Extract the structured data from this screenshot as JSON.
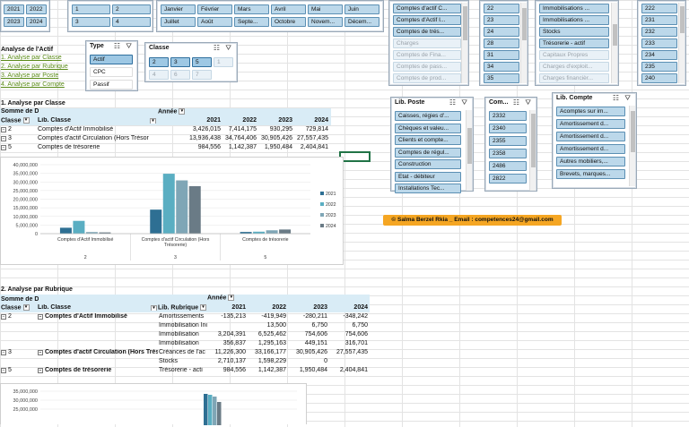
{
  "slicers": {
    "years": [
      "2021",
      "2022",
      "2023",
      "2024"
    ],
    "classes_top": [
      "1",
      "2",
      "3",
      "4"
    ],
    "months": [
      "Janvier",
      "Février",
      "Mars",
      "Avril",
      "Mai",
      "Juin",
      "Juillet",
      "Août",
      "Septe...",
      "Octobre",
      "Novem...",
      "Décem..."
    ],
    "comptes_list": [
      "Comptes d'actif C...",
      "Comptes d'Actif I...",
      "Comptes de trés...",
      "Charges",
      "Comptes de Fina...",
      "Comptes de pass...",
      "Comptes de prod..."
    ],
    "nums_a": [
      "22",
      "23",
      "24",
      "28",
      "31",
      "34",
      "35"
    ],
    "rubriques": [
      "Immobilisations ...",
      "Immobilisations ...",
      "Stocks",
      "Trésorerie - actif",
      "Capitaux Propres",
      "Charges d'exploit...",
      "Charges financièr..."
    ],
    "nums_b": [
      "222",
      "231",
      "232",
      "233",
      "234",
      "235",
      "240"
    ],
    "type": {
      "title": "Type",
      "items": [
        "Actif",
        "CPC",
        "Passif"
      ]
    },
    "classe": {
      "title": "Classe",
      "items": [
        "2",
        "3",
        "5",
        "1",
        "4",
        "6",
        "7"
      ]
    },
    "lib_poste": {
      "title": "Lib. Poste",
      "items": [
        "Caisses, régies d'...",
        "Chèques et valeu...",
        "Clients et compte...",
        "Comptes de régul...",
        "Construction",
        "Etat - débiteur",
        "Installations Tec..."
      ]
    },
    "compte": {
      "title": "Com...",
      "items": [
        "2332",
        "2340",
        "2355",
        "2358",
        "2486",
        "2822"
      ]
    },
    "lib_compte": {
      "title": "Lib. Compte",
      "items": [
        "Acomptes sur im...",
        "Amortissement d...",
        "Amortissement d...",
        "Amortissement d...",
        "Autres mobiliers,...",
        "Brevets, marques..."
      ]
    }
  },
  "nav": {
    "title": "Analyse de l'Actif",
    "links": [
      "1. Analyse par Classe",
      "2. Analyse par Rubrique",
      "3. Analyse par Poste",
      "4. Analyse par Compte"
    ]
  },
  "pivot1": {
    "title": "1. Analyse par Classe",
    "somme": "Somme de D",
    "annee": "Année",
    "col_classe": "Classe",
    "col_lib": "Lib. Classe",
    "years": [
      "2021",
      "2022",
      "2023",
      "2024"
    ],
    "rows": [
      {
        "code": "2",
        "lib": "Comptes d'Actif Immobilisé",
        "v": [
          "3,426,015",
          "7,414,175",
          "930,295",
          "729,814"
        ]
      },
      {
        "code": "3",
        "lib": "Comptes d'actif Circulation (Hors Trésor",
        "v": [
          "13,936,438",
          "34,764,406",
          "30,905,426",
          "27,557,435"
        ]
      },
      {
        "code": "5",
        "lib": "Comptes de trésorerie",
        "v": [
          "984,556",
          "1,142,387",
          "1,950,484",
          "2,404,841"
        ]
      }
    ]
  },
  "chart_data": [
    {
      "type": "bar",
      "categories": [
        "Comptes d'Actif Immobilisé",
        "Comptes d'actif Circulation (Hors Trésorerie)",
        "Comptes de trésorerie"
      ],
      "group_labels": [
        "2",
        "3",
        "5"
      ],
      "series": [
        {
          "name": "2021",
          "values": [
            3426015,
            13936438,
            984556
          ],
          "color": "#2e6f93"
        },
        {
          "name": "2022",
          "values": [
            7414175,
            34764406,
            1142387
          ],
          "color": "#5aaec2"
        },
        {
          "name": "2023",
          "values": [
            930295,
            30905426,
            1950484
          ],
          "color": "#7fa6b6"
        },
        {
          "name": "2024",
          "values": [
            729814,
            27557435,
            2404841
          ],
          "color": "#6a7b86"
        }
      ],
      "ylim": [
        0,
        40000000
      ],
      "yticks": [
        "40,000,000",
        "35,000,000",
        "30,000,000",
        "25,000,000",
        "20,000,000",
        "15,000,000",
        "10,000,000",
        "5,000,000",
        "0"
      ],
      "legend": "right",
      "grid": true
    },
    {
      "type": "bar",
      "partial": true,
      "yticks": [
        "35,000,000",
        "30,000,000",
        "25,000,000"
      ]
    }
  ],
  "pivot2": {
    "title": "2. Analyse par Rubrique",
    "somme": "Somme de D",
    "annee": "Année",
    "col_classe": "Classe",
    "col_lib": "Lib. Classe",
    "col_rub": "Lib. Rubrique",
    "years": [
      "2021",
      "2022",
      "2023",
      "2024"
    ],
    "rows": [
      {
        "code": "2",
        "lib": "Comptes d'Actif Immobilisé",
        "rub": "Amortissements",
        "v": [
          "-135,213",
          "-419,949",
          "-280,211",
          "-348,242"
        ]
      },
      {
        "code": "",
        "lib": "",
        "rub": "Immobilisation Incorporelles",
        "v": [
          "",
          "13,500",
          "6,750",
          "6,750"
        ]
      },
      {
        "code": "",
        "lib": "",
        "rub": "Immobilisation",
        "v": [
          "3,204,391",
          "6,525,462",
          "754,606",
          "754,606"
        ]
      },
      {
        "code": "",
        "lib": "",
        "rub": "Immobilisation",
        "v": [
          "356,837",
          "1,295,163",
          "449,151",
          "316,701"
        ]
      },
      {
        "code": "3",
        "lib": "Comptes d'actif Circulation (Hors Trésore",
        "rub": "Créances de l'ac",
        "v": [
          "11,226,300",
          "33,166,177",
          "30,905,426",
          "27,557,435"
        ]
      },
      {
        "code": "",
        "lib": "",
        "rub": "Stocks",
        "v": [
          "2,710,137",
          "1,598,229",
          "0",
          ""
        ]
      },
      {
        "code": "5",
        "lib": "Comptes de trésorerie",
        "rub": "Trésorerie - acti",
        "v": [
          "984,556",
          "1,142,387",
          "1,950,484",
          "2,404,841"
        ]
      }
    ]
  },
  "banner": "© Salma Berzel Rkia _  Email : competences24@gmail.com"
}
